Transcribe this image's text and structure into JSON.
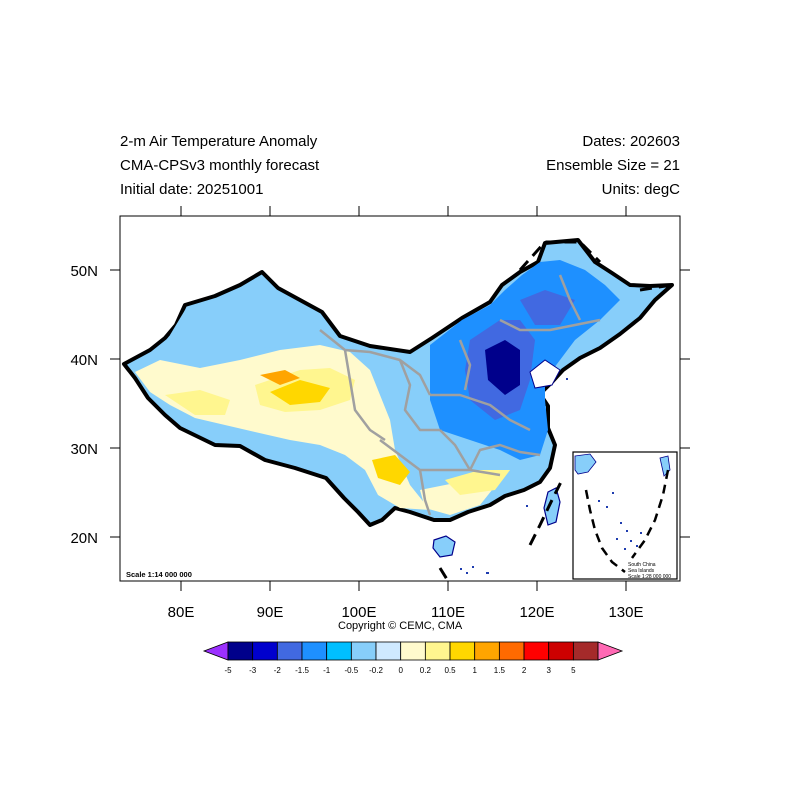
{
  "header": {
    "title_line1": "2-m Air Temperature Anomaly",
    "title_line2": "CMA-CPSv3 monthly forecast",
    "title_line3": "Initial date: 20251001",
    "dates": "Dates: 202603",
    "ensemble": "Ensemble Size = 21",
    "units": "Units: degC"
  },
  "axes": {
    "x_ticks": [
      "80E",
      "90E",
      "100E",
      "110E",
      "120E",
      "130E"
    ],
    "y_ticks": [
      "50N",
      "40N",
      "30N",
      "20N"
    ]
  },
  "map": {
    "scale_label": "Scale 1:14 000 000",
    "inset_line1": "South China",
    "inset_line2": "Sea Islands",
    "inset_scale": "Scale 1:28 000 000"
  },
  "copyright": "Copyright © CEMC, CMA",
  "colorbar": {
    "labels": [
      "-5",
      "-3",
      "-2",
      "-1.5",
      "-1",
      "-0.5",
      "-0.2",
      "0",
      "0.2",
      "0.5",
      "1",
      "1.5",
      "2",
      "3",
      "5"
    ],
    "colors": [
      "#9b30ff",
      "#00008b",
      "#0000cd",
      "#4169e1",
      "#1e90ff",
      "#00bfff",
      "#87cefa",
      "#cfe9ff",
      "#fffacd",
      "#fff68f",
      "#ffd700",
      "#ffa500",
      "#ff6a00",
      "#ff0000",
      "#cd0000",
      "#a52a2a",
      "#ff69b4"
    ]
  }
}
